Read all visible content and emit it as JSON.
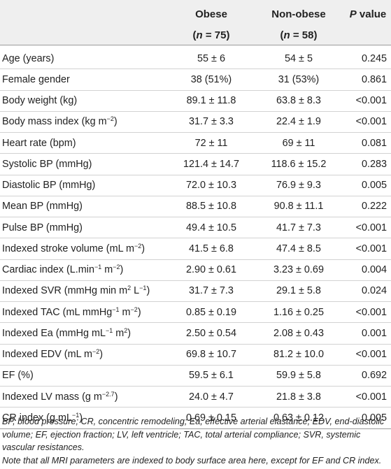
{
  "header": {
    "obese": "Obese",
    "obese_n": "(n = 75)",
    "nonobese": "Non-obese",
    "nonobese_n": "(n = 58)",
    "pvalue": "P value"
  },
  "rows": [
    {
      "label": "Age (years)",
      "obese": "55 ± 6",
      "nonobese": "54 ± 5",
      "p": "0.245"
    },
    {
      "label": "Female gender",
      "obese": "38 (51%)",
      "nonobese": "31 (53%)",
      "p": "0.861"
    },
    {
      "label": "Body weight (kg)",
      "obese": "89.1 ± 11.8",
      "nonobese": "63.8 ± 8.3",
      "p": "<0.001"
    },
    {
      "label": "Body mass index (kg m<sup>−2</sup>)",
      "obese": "31.7 ± 3.3",
      "nonobese": "22.4 ± 1.9",
      "p": "<0.001"
    },
    {
      "label": "Heart rate (bpm)",
      "obese": "72 ± 11",
      "nonobese": "69 ± 11",
      "p": "0.081"
    },
    {
      "label": "Systolic BP (mmHg)",
      "obese": "121.4 ± 14.7",
      "nonobese": "118.6 ± 15.2",
      "p": "0.283"
    },
    {
      "label": "Diastolic BP (mmHg)",
      "obese": "72.0 ± 10.3",
      "nonobese": "76.9 ± 9.3",
      "p": "0.005"
    },
    {
      "label": "Mean BP (mmHg)",
      "obese": "88.5 ± 10.8",
      "nonobese": "90.8 ± 11.1",
      "p": "0.222"
    },
    {
      "label": "Pulse BP (mmHg)",
      "obese": "49.4 ± 10.5",
      "nonobese": "41.7 ± 7.3",
      "p": "<0.001"
    },
    {
      "label": "Indexed stroke volume (mL m<sup>−2</sup>)",
      "obese": "41.5 ± 6.8",
      "nonobese": "47.4 ± 8.5",
      "p": "<0.001"
    },
    {
      "label": "Cardiac index (L.min<sup>−1</sup> m<sup>−2</sup>)",
      "obese": "2.90 ± 0.61",
      "nonobese": "3.23 ± 0.69",
      "p": "0.004"
    },
    {
      "label": "Indexed SVR (mmHg min m<sup>2</sup> L<sup>−1</sup>)",
      "obese": "31.7 ± 7.3",
      "nonobese": "29.1 ± 5.8",
      "p": "0.024"
    },
    {
      "label": "Indexed TAC (mL mmHg<sup>−1</sup> m<sup>−2</sup>)",
      "obese": "0.85 ± 0.19",
      "nonobese": "1.16 ± 0.25",
      "p": "<0.001"
    },
    {
      "label": "Indexed Ea (mmHg mL<sup>−1</sup> m<sup>2</sup>)",
      "obese": "2.50 ± 0.54",
      "nonobese": "2.08 ± 0.43",
      "p": "0.001"
    },
    {
      "label": "Indexed EDV (mL m<sup>−2</sup>)",
      "obese": "69.8 ± 10.7",
      "nonobese": "81.2 ± 10.0",
      "p": "<0.001"
    },
    {
      "label": "EF (%)",
      "obese": "59.5 ± 6.1",
      "nonobese": "59.9 ± 5.8",
      "p": "0.692"
    },
    {
      "label": "Indexed LV mass (g m<sup>−2.7</sup>)",
      "obese": "24.0 ± 4.7",
      "nonobese": "21.8 ± 3.8",
      "p": "<0.001"
    },
    {
      "label": "CR index (g mL<sup>−1</sup>)",
      "obese": "0.69 ± 0.15",
      "nonobese": "0.63 ± 0.12",
      "p": "0.005"
    }
  ],
  "notes": {
    "abbreviations": "BP, blood pressure; CR, concentric remodeling; Ea, effective arterial elastance; EDV, end-diastolic volume; EF, ejection fraction; LV, left ventricle; TAC, total arterial compliance; SVR, systemic vascular resistances.",
    "indexing": "Note that all MRI parameters are indexed to body surface area here, except for EF and CR index."
  }
}
